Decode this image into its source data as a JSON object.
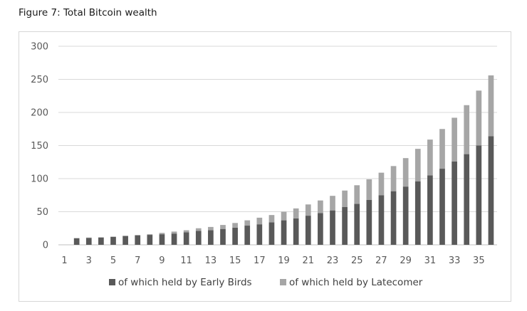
{
  "caption": "Figure 7: Total Bitcoin wealth",
  "colors": {
    "early": "#595959",
    "late": "#a6a6a6",
    "grid": "#d9d9d9",
    "axis": "#bfbfbf"
  },
  "chart_data": {
    "type": "bar",
    "stacked": true,
    "title": "",
    "xlabel": "",
    "ylabel": "",
    "ylim": [
      0,
      300
    ],
    "yticks": [
      0,
      50,
      100,
      150,
      200,
      250,
      300
    ],
    "categories": [
      1,
      2,
      3,
      4,
      5,
      6,
      7,
      8,
      9,
      10,
      11,
      12,
      13,
      14,
      15,
      16,
      17,
      18,
      19,
      20,
      21,
      22,
      23,
      24,
      25,
      26,
      27,
      28,
      29,
      30,
      31,
      32,
      33,
      34,
      35,
      36
    ],
    "xtick_labels": [
      1,
      3,
      5,
      7,
      9,
      11,
      13,
      15,
      17,
      19,
      21,
      23,
      25,
      27,
      29,
      31,
      33,
      35
    ],
    "grid": true,
    "legend_position": "bottom",
    "series": [
      {
        "name": "of which held by Early Birds",
        "values": [
          0,
          10,
          10.5,
          11,
          12,
          13,
          14,
          15,
          16,
          17,
          19,
          21,
          22,
          24,
          26,
          29,
          31,
          34,
          37,
          40,
          44,
          48,
          52,
          57,
          62,
          68,
          75,
          81,
          88,
          96,
          105,
          115,
          126,
          137,
          150,
          164
        ]
      },
      {
        "name": "of which held by Latecomer",
        "values": [
          0,
          0,
          0.5,
          0.5,
          0.5,
          1,
          1,
          1,
          2,
          3,
          3,
          4,
          5,
          6,
          7,
          8,
          10,
          11,
          13,
          15,
          17,
          19,
          22,
          25,
          28,
          31,
          34,
          38,
          43,
          49,
          54,
          60,
          66,
          74,
          83,
          92
        ]
      }
    ]
  }
}
